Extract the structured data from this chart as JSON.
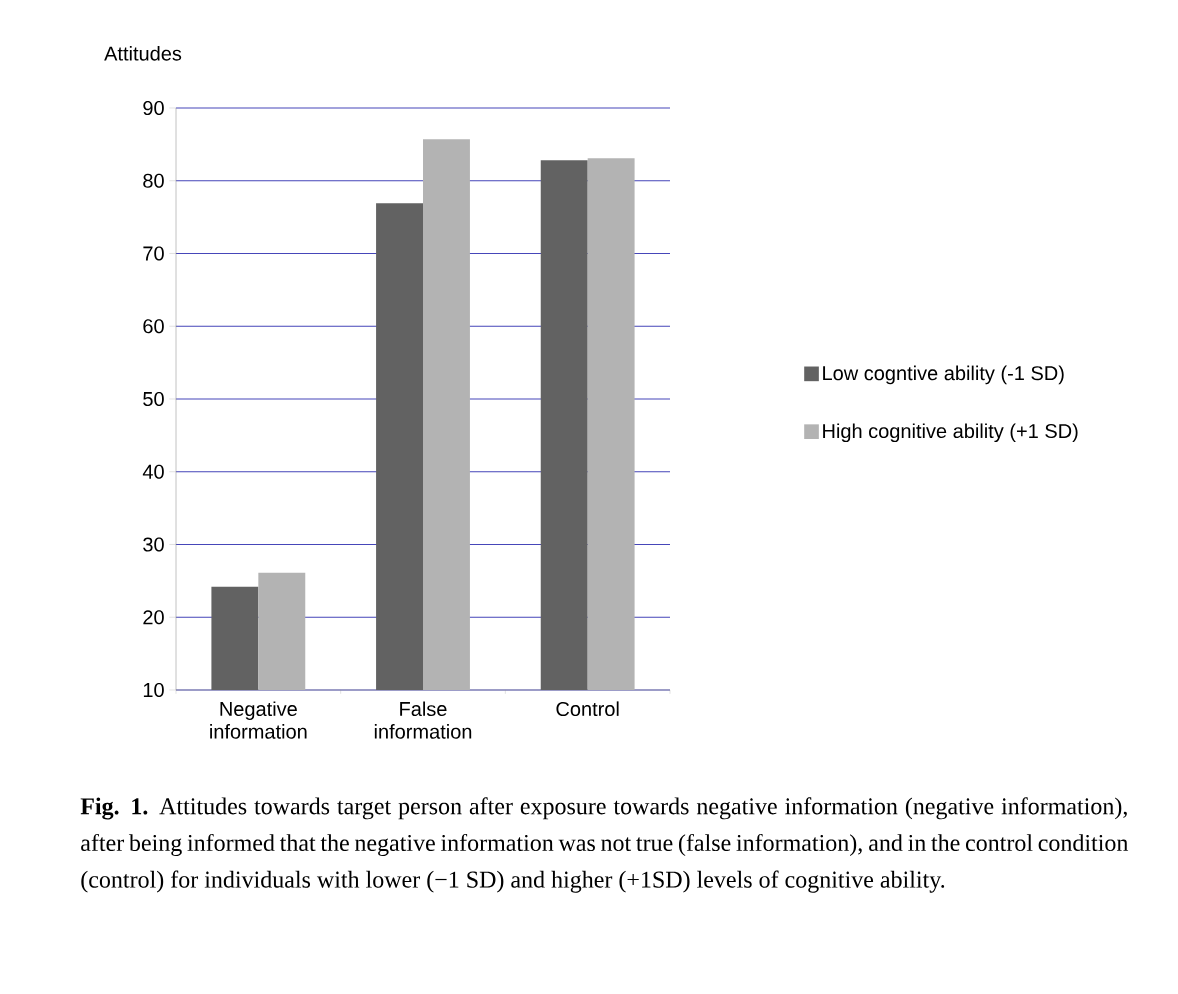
{
  "chart_data": {
    "type": "bar",
    "ylabel": "Attitudes",
    "categories": [
      "Negative information",
      "False information",
      "Control"
    ],
    "series": [
      {
        "name": "Low cogntive ability (-1 SD)",
        "color": "#626262",
        "values": [
          24.2,
          76.9,
          82.8
        ]
      },
      {
        "name": "High cognitive ability (+1 SD)",
        "color": "#b3b3b3",
        "values": [
          26.1,
          85.7,
          83.1
        ]
      }
    ],
    "ylim": [
      10,
      90
    ],
    "yticks": [
      10,
      20,
      30,
      40,
      50,
      60,
      70,
      80,
      90
    ],
    "grid": "y",
    "legend": "right",
    "annotations": [
      "**Fig. 1.** Attitudes towards target person after exposure towards negative information (negative information), after being informed that the negative information was not true (false information), and in the control condition (control) for individuals with lower (−1 SD) and higher (+1SD) levels of cognitive ability."
    ]
  }
}
